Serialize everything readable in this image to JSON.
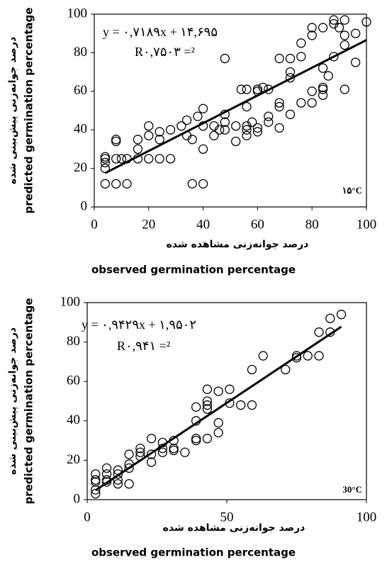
{
  "chart_data": [
    {
      "type": "scatter",
      "ylabel": "درصد جوانه‌زنی پیش‌بینی شده",
      "ylabel_en": "predicted germination percentage",
      "xlabel": "درصد جوانه‌زنی مشاهده شده",
      "xlabel_en": "observed germination percentage",
      "equation": "y = ۰,۷۱۸۹x + ۱۴,۶۹۵",
      "r_squared": "R۰,۷۵۰۳ =²",
      "annotation": "۱۵°C",
      "xlim": [
        0,
        100
      ],
      "xticks": [
        0,
        20,
        40,
        60,
        80,
        100
      ],
      "ylim": [
        0,
        100
      ],
      "yticks": [
        0,
        20,
        40,
        60,
        80,
        100
      ],
      "color": "#000000",
      "x": [
        4,
        4,
        4,
        4,
        4,
        8,
        8,
        8,
        8,
        10,
        12,
        12,
        16,
        16,
        16,
        20,
        20,
        20,
        24,
        24,
        24,
        28,
        28,
        32,
        34,
        34,
        36,
        36,
        38,
        40,
        40,
        40,
        40,
        44,
        44,
        46,
        48,
        48,
        48,
        48,
        52,
        52,
        54,
        56,
        56,
        56,
        56,
        56,
        58,
        60,
        60,
        60,
        60,
        62,
        64,
        64,
        64,
        68,
        68,
        68,
        68,
        72,
        72,
        72,
        72,
        76,
        76,
        76,
        80,
        80,
        80,
        80,
        84,
        84,
        84,
        84,
        84,
        86,
        88,
        88,
        88,
        90,
        92,
        92,
        92,
        92,
        96,
        96,
        100
      ],
      "y": [
        12,
        20,
        23,
        25,
        26,
        12,
        25,
        34,
        35,
        25,
        12,
        25,
        25,
        30,
        35,
        25,
        37,
        42,
        25,
        35,
        39,
        25,
        40,
        42,
        37,
        45,
        12,
        35,
        47,
        12,
        30,
        42,
        51,
        37,
        42,
        40,
        40,
        44,
        48,
        77,
        34,
        42,
        61,
        37,
        40,
        42,
        52,
        61,
        44,
        39,
        41,
        60,
        61,
        62,
        44,
        47,
        61,
        41,
        52,
        54,
        77,
        48,
        67,
        70,
        77,
        54,
        78,
        85,
        54,
        60,
        89,
        93,
        58,
        61,
        62,
        72,
        93,
        68,
        78,
        95,
        97,
        93,
        61,
        84,
        89,
        97,
        75,
        90,
        96
      ],
      "trendline": {
        "slope": 0.7189,
        "intercept": 14.695,
        "xlim": [
          4,
          100
        ]
      }
    },
    {
      "type": "scatter",
      "ylabel": "درصد جوانه‌زنی پیش‌بینی شده",
      "ylabel_en": "predicted germination percentage",
      "xlabel": "درصد جوانه‌زنی مشاهده شده",
      "xlabel_en": "observed germination percentage",
      "equation": "y = ۰,۹۴۲۹x + ۱,۹۵۰۲",
      "r_squared": "R۰,۹۴۱ =²",
      "annotation": "30°C",
      "xlim": [
        0,
        100
      ],
      "xticks": [
        0,
        50,
        100
      ],
      "ylim": [
        0,
        100
      ],
      "yticks": [
        0,
        20,
        40,
        60,
        80,
        100
      ],
      "color": "#000000",
      "x": [
        3,
        3,
        3,
        3,
        3,
        7,
        7,
        7,
        7,
        11,
        11,
        11,
        11,
        15,
        15,
        15,
        15,
        19,
        19,
        19,
        23,
        23,
        23,
        27,
        27,
        27,
        31,
        31,
        31,
        35,
        39,
        39,
        39,
        39,
        43,
        43,
        43,
        43,
        43,
        47,
        47,
        47,
        51,
        51,
        55,
        59,
        59,
        63,
        71,
        75,
        75,
        79,
        83,
        83,
        87,
        87,
        91
      ],
      "y": [
        3,
        5,
        9,
        10,
        13,
        9,
        10,
        13,
        16,
        8,
        10,
        13,
        15,
        8,
        16,
        18,
        23,
        22,
        24,
        26,
        19,
        23,
        31,
        24,
        26,
        29,
        25,
        26,
        30,
        24,
        30,
        31,
        40,
        47,
        31,
        46,
        48,
        50,
        56,
        34,
        39,
        55,
        49,
        56,
        48,
        48,
        66,
        73,
        66,
        72,
        73,
        73,
        73,
        85,
        85,
        92,
        94
      ],
      "trendline": {
        "slope": 0.9429,
        "intercept": 1.9502,
        "xlim": [
          3,
          91
        ]
      }
    }
  ]
}
